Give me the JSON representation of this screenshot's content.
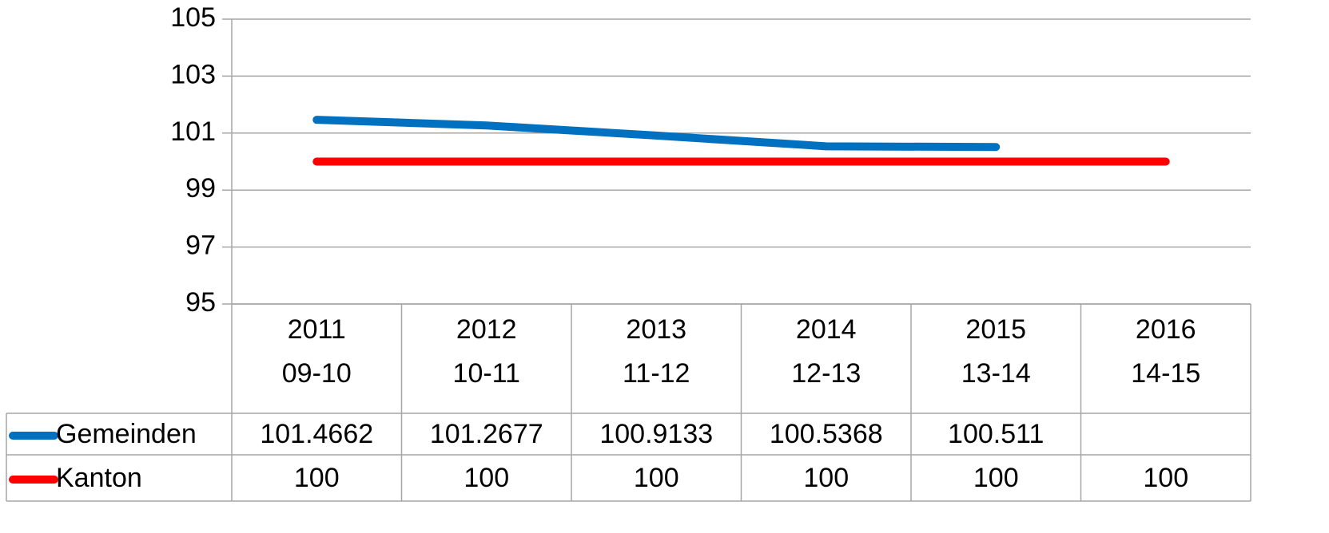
{
  "chart_data": {
    "type": "line",
    "categories": [
      [
        "2011",
        "09-10"
      ],
      [
        "2012",
        "10-11"
      ],
      [
        "2013",
        "11-12"
      ],
      [
        "2014",
        "12-13"
      ],
      [
        "2015",
        "13-14"
      ],
      [
        "2016",
        "14-15"
      ]
    ],
    "series": [
      {
        "name": "Gemeinden",
        "color": "#0070c0",
        "values": [
          101.4662,
          101.2677,
          100.9133,
          100.5368,
          100.511,
          null
        ]
      },
      {
        "name": "Kanton",
        "color": "#ff0000",
        "values": [
          100,
          100,
          100,
          100,
          100,
          100
        ]
      }
    ],
    "ylim": [
      95,
      105
    ],
    "yticks": [
      95,
      97,
      99,
      101,
      103,
      105
    ],
    "grid": true,
    "data_table": true
  }
}
